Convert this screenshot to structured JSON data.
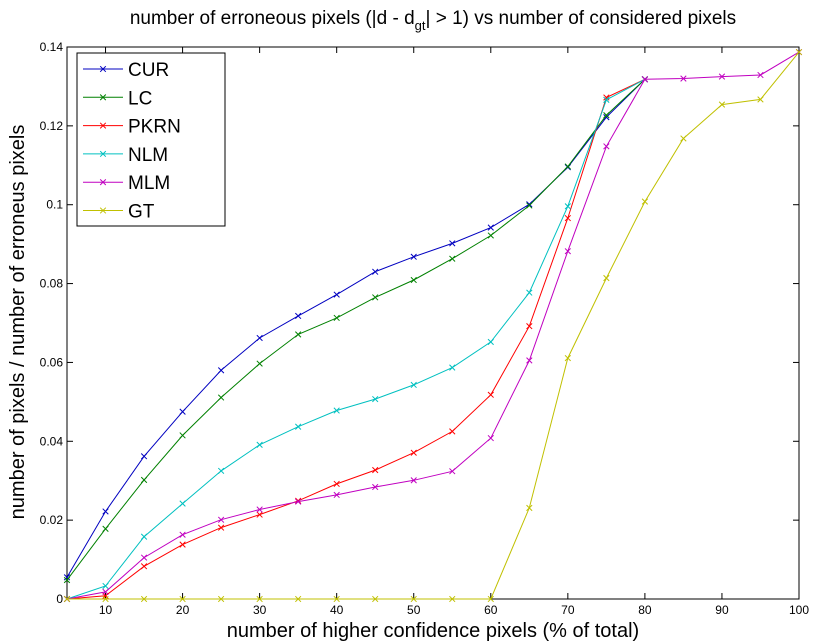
{
  "chart_data": {
    "type": "line",
    "title_pre": "number of erroneous pixels (|d - d",
    "title_sub": "gt",
    "title_post": "| > 1) vs number of considered pixels",
    "xlabel": "number of higher confidence pixels (% of total)",
    "ylabel": "number of pixels / number of erroneus pixels",
    "xlim": [
      5,
      100
    ],
    "ylim": [
      0,
      0.14
    ],
    "xticks": [
      10,
      20,
      30,
      40,
      50,
      60,
      70,
      80,
      90,
      100
    ],
    "yticks": [
      0,
      0.02,
      0.04,
      0.06,
      0.08,
      0.1,
      0.12,
      0.14
    ],
    "ytick_labels": [
      "0",
      "0.02",
      "0.04",
      "0.06",
      "0.08",
      "0.1",
      "0.12",
      "0.14"
    ],
    "legend_position": "top-left",
    "grid": false,
    "x": [
      5,
      10,
      15,
      20,
      25,
      30,
      35,
      40,
      45,
      50,
      55,
      60,
      65,
      70,
      75,
      80,
      85,
      90,
      95,
      100
    ],
    "series": [
      {
        "name": "CUR",
        "color": "#0000c0",
        "values": [
          0.0055,
          0.0222,
          0.0362,
          0.0475,
          0.058,
          0.0662,
          0.0718,
          0.0772,
          0.083,
          0.0868,
          0.0902,
          0.0942,
          0.1001,
          0.1095,
          0.1222,
          0.1318,
          null,
          null,
          null,
          null
        ]
      },
      {
        "name": "LC",
        "color": "#008000",
        "values": [
          0.0048,
          0.0178,
          0.0302,
          0.0415,
          0.0511,
          0.0597,
          0.0671,
          0.0713,
          0.0765,
          0.0809,
          0.0863,
          0.0922,
          0.0998,
          0.1097,
          0.1227,
          0.1318,
          null,
          null,
          null,
          null
        ]
      },
      {
        "name": "PKRN",
        "color": "#ff0000",
        "values": [
          0.0,
          0.0008,
          0.0083,
          0.0138,
          0.0181,
          0.0214,
          0.0249,
          0.0292,
          0.0327,
          0.0371,
          0.0425,
          0.0518,
          0.0692,
          0.0966,
          0.1272,
          0.1318,
          null,
          null,
          null,
          null
        ]
      },
      {
        "name": "NLM",
        "color": "#00c0c0",
        "values": [
          0.0,
          0.0033,
          0.0158,
          0.0242,
          0.0325,
          0.0391,
          0.0437,
          0.0478,
          0.0507,
          0.0543,
          0.0587,
          0.0652,
          0.0777,
          0.0996,
          0.1266,
          0.1318,
          null,
          null,
          null,
          null
        ]
      },
      {
        "name": "MLM",
        "color": "#c000c0",
        "values": [
          0.0,
          0.0018,
          0.0105,
          0.0163,
          0.0201,
          0.0227,
          0.0247,
          0.0264,
          0.0284,
          0.0301,
          0.0324,
          0.0408,
          0.0605,
          0.0882,
          0.1148,
          0.1318,
          0.132,
          0.1325,
          0.1329,
          0.1387
        ]
      },
      {
        "name": "GT",
        "color": "#c0c000",
        "values": [
          0.0,
          0.0,
          0.0,
          0.0,
          0.0,
          0.0,
          0.0,
          0.0,
          0.0,
          0.0,
          0.0,
          0.0,
          0.0231,
          0.0611,
          0.0814,
          0.1008,
          0.1168,
          0.1254,
          0.1267,
          0.1387
        ]
      }
    ]
  }
}
